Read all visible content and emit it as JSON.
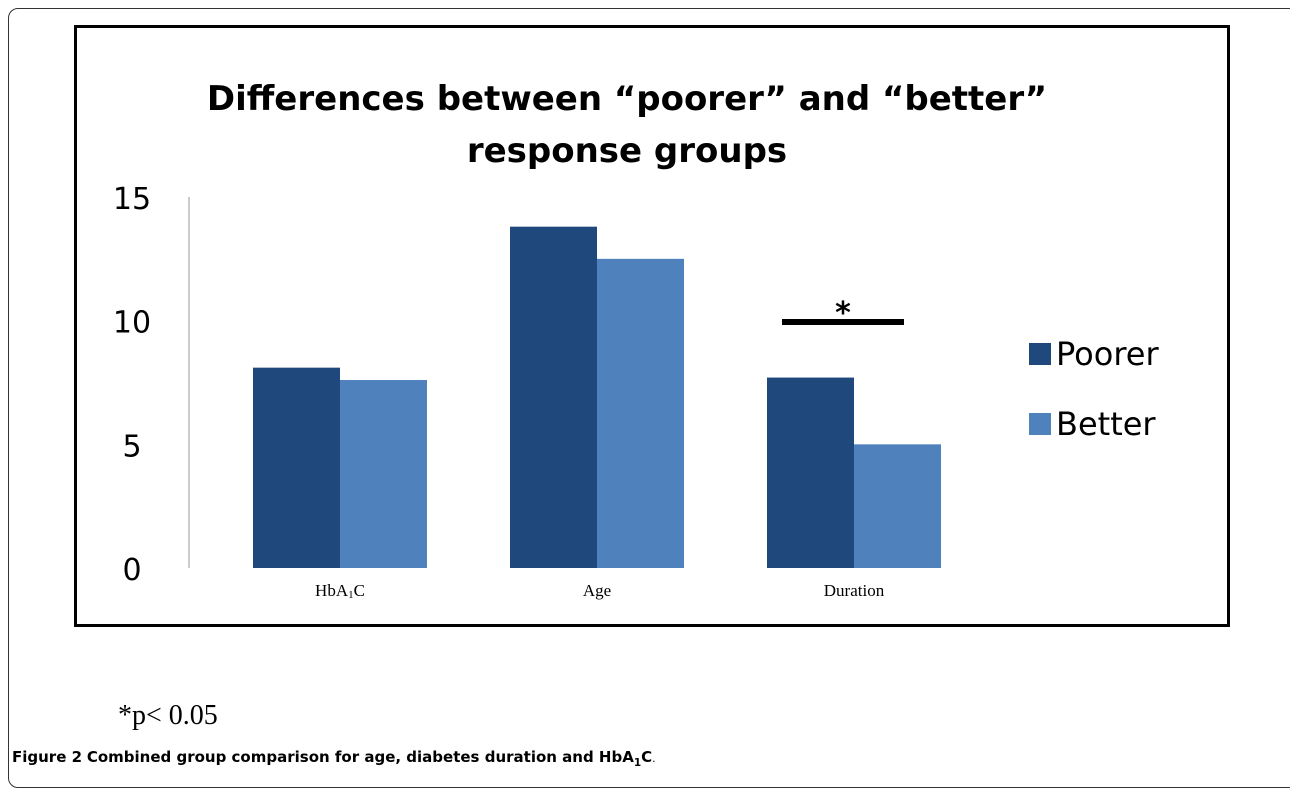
{
  "chart_data": {
    "type": "bar",
    "title_lines": [
      "Differences between “poorer” and “better”",
      "response groups"
    ],
    "categories": [
      {
        "main": "HbA",
        "sub": "1",
        "tail": "C"
      },
      {
        "main": "Age",
        "sub": "",
        "tail": ""
      },
      {
        "main": "Duration",
        "sub": "",
        "tail": ""
      }
    ],
    "series": [
      {
        "name": "Poorer",
        "color": "#1f497d",
        "values": [
          8.1,
          13.8,
          7.7
        ]
      },
      {
        "name": "Better",
        "color": "#4f81bd",
        "values": [
          7.6,
          12.5,
          5.0
        ]
      }
    ],
    "ylim": [
      0,
      15
    ],
    "yticks": [
      "0",
      "5",
      "10",
      "15"
    ],
    "legend_position": "right",
    "annotation": {
      "text": "*",
      "category": "Duration"
    },
    "grid": false
  },
  "footnote": "*p< 0.05",
  "caption": {
    "figure_label": "Figure 2",
    "text": "Combined group comparison for age, diabetes duration and HbA",
    "sub": "1",
    "tail": "C",
    "end": "."
  }
}
